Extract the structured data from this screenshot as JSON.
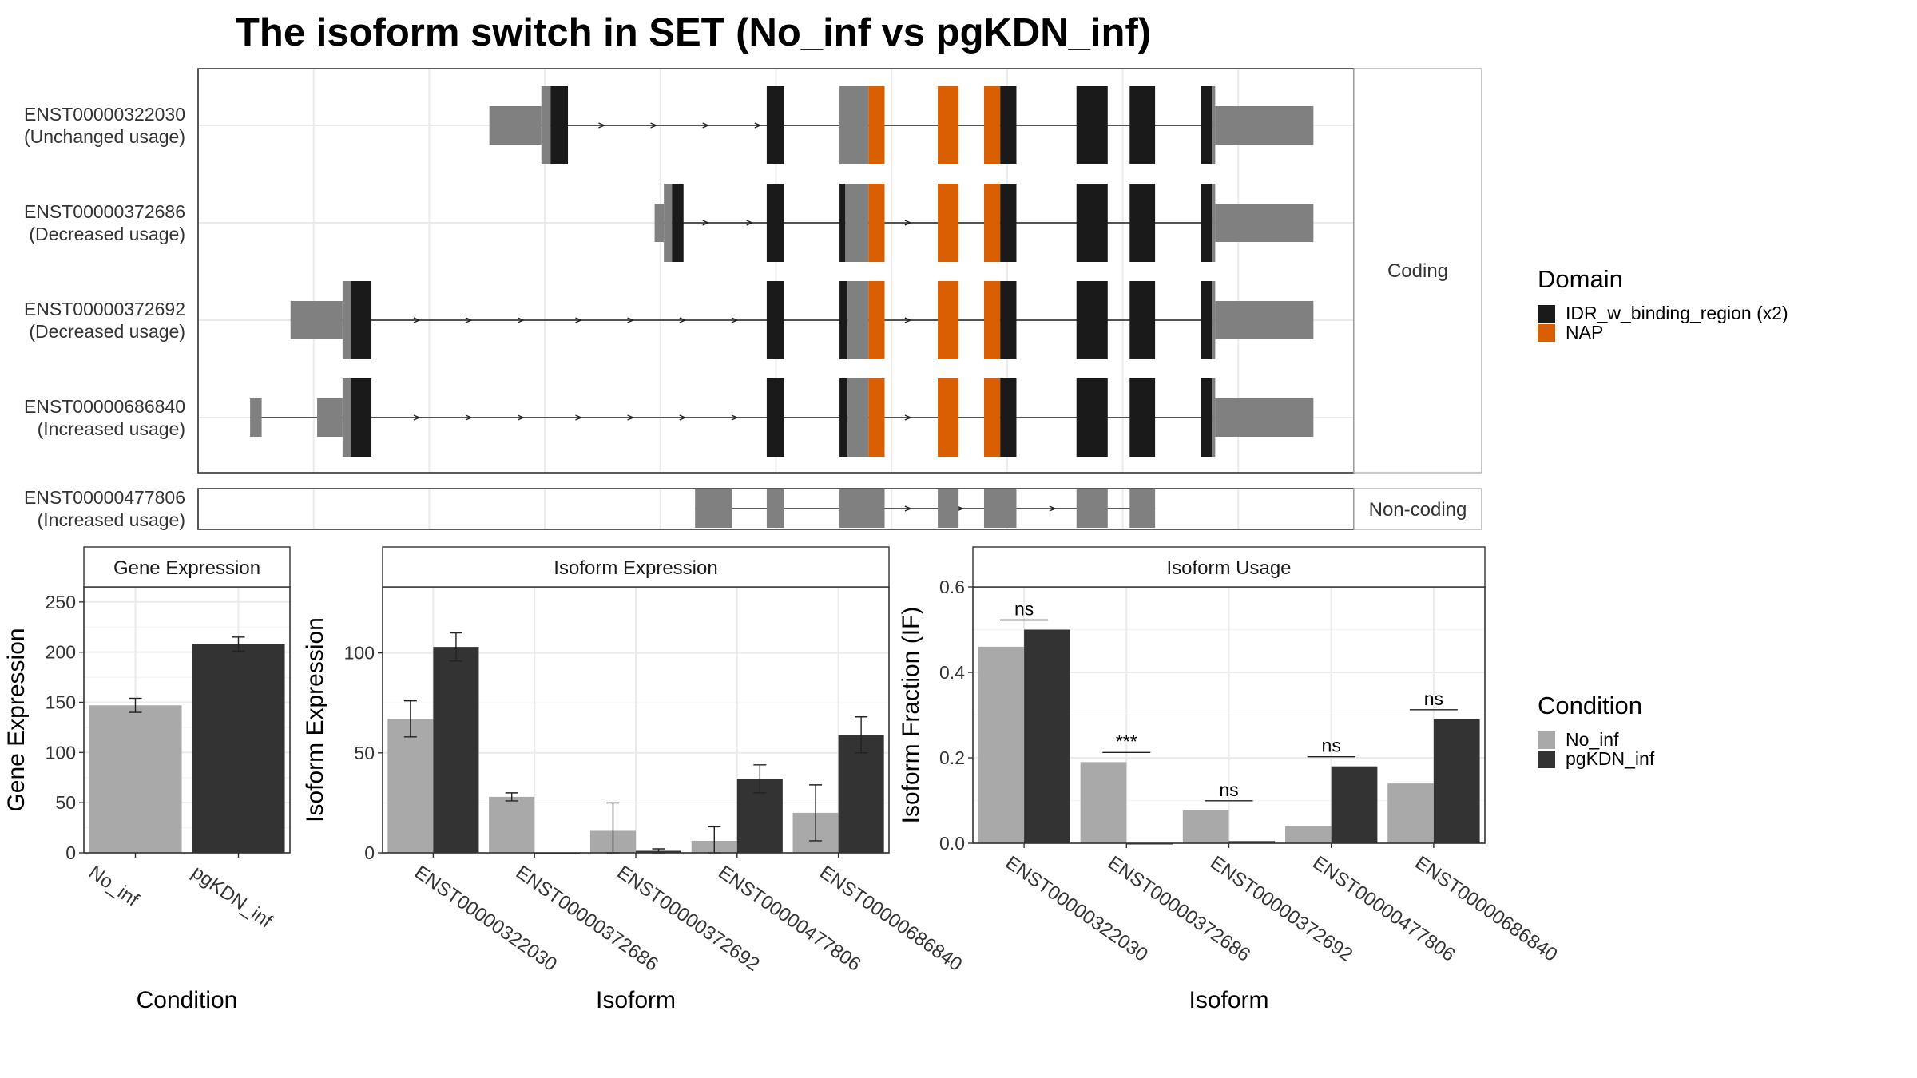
{
  "title": "The isoform switch in SET (No_inf vs pgKDN_inf)",
  "colors": {
    "domain_idr": "#1a1a1a",
    "domain_nap": "#d95f02",
    "utr": "#808080",
    "no_inf": "#a9a9a9",
    "pgkdn_inf": "#333333",
    "grid": "#ebebeb",
    "frame": "#333333"
  },
  "domain_legend": {
    "title": "Domain",
    "items": [
      {
        "label": "IDR_w_binding_region (x2)",
        "color": "#1a1a1a"
      },
      {
        "label": "NAP",
        "color": "#d95f02"
      }
    ]
  },
  "condition_legend": {
    "title": "Condition",
    "items": [
      {
        "label": "No_inf",
        "color": "#a9a9a9"
      },
      {
        "label": "pgKDN_inf",
        "color": "#333333"
      }
    ]
  },
  "structure": {
    "coding_strip": "Coding",
    "noncoding_strip": "Non-coding",
    "xlim": [
      0,
      1000
    ],
    "gridlines": [
      0,
      100,
      200,
      300,
      400,
      500,
      600,
      700,
      800,
      900,
      1000
    ],
    "transcripts": [
      {
        "id": "ENST00000322030",
        "usage": "(Unchanged usage)",
        "group": "coding",
        "line": [
          260,
          880
        ],
        "arrows": [
          350,
          395,
          440,
          485
        ],
        "exons": [
          {
            "s": 252,
            "e": 297,
            "c": "utr",
            "h": "small"
          },
          {
            "s": 297,
            "e": 305,
            "c": "utr",
            "h": "big"
          },
          {
            "s": 305,
            "e": 320,
            "c": "idr",
            "h": "big"
          },
          {
            "s": 492,
            "e": 507,
            "c": "idr",
            "h": "big"
          },
          {
            "s": 555,
            "e": 580,
            "c": "utr",
            "h": "big"
          },
          {
            "s": 580,
            "e": 594,
            "c": "nap",
            "h": "big"
          },
          {
            "s": 640,
            "e": 658,
            "c": "nap",
            "h": "big"
          },
          {
            "s": 680,
            "e": 694,
            "c": "nap",
            "h": "big"
          },
          {
            "s": 694,
            "e": 708,
            "c": "idr",
            "h": "big"
          },
          {
            "s": 760,
            "e": 787,
            "c": "idr",
            "h": "big"
          },
          {
            "s": 806,
            "e": 828,
            "c": "idr",
            "h": "big"
          },
          {
            "s": 868,
            "e": 877,
            "c": "idr",
            "h": "big"
          },
          {
            "s": 877,
            "e": 880,
            "c": "utr",
            "h": "big"
          },
          {
            "s": 880,
            "e": 965,
            "c": "utr",
            "h": "small"
          }
        ]
      },
      {
        "id": "ENST00000372686",
        "usage": "(Decreased usage)",
        "group": "coding",
        "line": [
          400,
          880
        ],
        "arrows": [
          440,
          478,
          615
        ],
        "exons": [
          {
            "s": 395,
            "e": 403,
            "c": "utr",
            "h": "small"
          },
          {
            "s": 403,
            "e": 410,
            "c": "utr",
            "h": "big"
          },
          {
            "s": 410,
            "e": 420,
            "c": "idr",
            "h": "big"
          },
          {
            "s": 492,
            "e": 507,
            "c": "idr",
            "h": "big"
          },
          {
            "s": 555,
            "e": 560,
            "c": "idr",
            "h": "big"
          },
          {
            "s": 560,
            "e": 580,
            "c": "utr",
            "h": "big"
          },
          {
            "s": 580,
            "e": 594,
            "c": "nap",
            "h": "big"
          },
          {
            "s": 640,
            "e": 658,
            "c": "nap",
            "h": "big"
          },
          {
            "s": 680,
            "e": 694,
            "c": "nap",
            "h": "big"
          },
          {
            "s": 694,
            "e": 708,
            "c": "idr",
            "h": "big"
          },
          {
            "s": 760,
            "e": 787,
            "c": "idr",
            "h": "big"
          },
          {
            "s": 806,
            "e": 828,
            "c": "idr",
            "h": "big"
          },
          {
            "s": 868,
            "e": 877,
            "c": "idr",
            "h": "big"
          },
          {
            "s": 877,
            "e": 880,
            "c": "utr",
            "h": "big"
          },
          {
            "s": 880,
            "e": 965,
            "c": "utr",
            "h": "small"
          }
        ]
      },
      {
        "id": "ENST00000372692",
        "usage": "(Decreased usage)",
        "group": "coding",
        "line": [
          80,
          880
        ],
        "arrows": [
          190,
          235,
          280,
          330,
          375,
          420,
          465,
          615
        ],
        "exons": [
          {
            "s": 80,
            "e": 125,
            "c": "utr",
            "h": "small"
          },
          {
            "s": 125,
            "e": 132,
            "c": "utr",
            "h": "big"
          },
          {
            "s": 132,
            "e": 150,
            "c": "idr",
            "h": "big"
          },
          {
            "s": 492,
            "e": 507,
            "c": "idr",
            "h": "big"
          },
          {
            "s": 555,
            "e": 562,
            "c": "idr",
            "h": "big"
          },
          {
            "s": 562,
            "e": 580,
            "c": "utr",
            "h": "big"
          },
          {
            "s": 580,
            "e": 594,
            "c": "nap",
            "h": "big"
          },
          {
            "s": 640,
            "e": 658,
            "c": "nap",
            "h": "big"
          },
          {
            "s": 680,
            "e": 694,
            "c": "nap",
            "h": "big"
          },
          {
            "s": 694,
            "e": 708,
            "c": "idr",
            "h": "big"
          },
          {
            "s": 760,
            "e": 787,
            "c": "idr",
            "h": "big"
          },
          {
            "s": 806,
            "e": 828,
            "c": "idr",
            "h": "big"
          },
          {
            "s": 868,
            "e": 877,
            "c": "idr",
            "h": "big"
          },
          {
            "s": 877,
            "e": 880,
            "c": "utr",
            "h": "big"
          },
          {
            "s": 880,
            "e": 965,
            "c": "utr",
            "h": "small"
          }
        ]
      },
      {
        "id": "ENST00000686840",
        "usage": "(Increased usage)",
        "group": "coding",
        "line": [
          45,
          880
        ],
        "arrows": [
          190,
          235,
          280,
          330,
          375,
          420,
          465,
          615
        ],
        "exons": [
          {
            "s": 45,
            "e": 55,
            "c": "utr",
            "h": "small"
          },
          {
            "s": 103,
            "e": 125,
            "c": "utr",
            "h": "small"
          },
          {
            "s": 125,
            "e": 132,
            "c": "utr",
            "h": "big"
          },
          {
            "s": 132,
            "e": 150,
            "c": "idr",
            "h": "big"
          },
          {
            "s": 492,
            "e": 507,
            "c": "idr",
            "h": "big"
          },
          {
            "s": 555,
            "e": 562,
            "c": "idr",
            "h": "big"
          },
          {
            "s": 562,
            "e": 580,
            "c": "utr",
            "h": "big"
          },
          {
            "s": 580,
            "e": 594,
            "c": "nap",
            "h": "big"
          },
          {
            "s": 640,
            "e": 658,
            "c": "nap",
            "h": "big"
          },
          {
            "s": 680,
            "e": 694,
            "c": "nap",
            "h": "big"
          },
          {
            "s": 694,
            "e": 708,
            "c": "idr",
            "h": "big"
          },
          {
            "s": 760,
            "e": 787,
            "c": "idr",
            "h": "big"
          },
          {
            "s": 806,
            "e": 828,
            "c": "idr",
            "h": "big"
          },
          {
            "s": 868,
            "e": 877,
            "c": "idr",
            "h": "big"
          },
          {
            "s": 877,
            "e": 880,
            "c": "utr",
            "h": "big"
          },
          {
            "s": 880,
            "e": 965,
            "c": "utr",
            "h": "small"
          }
        ]
      },
      {
        "id": "ENST00000477806",
        "usage": "(Increased usage)",
        "group": "noncoding",
        "line": [
          430,
          828
        ],
        "arrows": [
          615,
          660,
          740
        ],
        "exons": [
          {
            "s": 430,
            "e": 462,
            "c": "utr",
            "h": "big"
          },
          {
            "s": 492,
            "e": 507,
            "c": "utr",
            "h": "big"
          },
          {
            "s": 555,
            "e": 594,
            "c": "utr",
            "h": "big"
          },
          {
            "s": 640,
            "e": 658,
            "c": "utr",
            "h": "big"
          },
          {
            "s": 680,
            "e": 708,
            "c": "utr",
            "h": "big"
          },
          {
            "s": 760,
            "e": 787,
            "c": "utr",
            "h": "big"
          },
          {
            "s": 806,
            "e": 828,
            "c": "utr",
            "h": "big"
          }
        ]
      }
    ]
  },
  "chart_data": [
    {
      "type": "bar",
      "title": "Gene Expression",
      "xlabel": "Condition",
      "ylabel": "Gene Expression",
      "ylim": [
        0,
        265
      ],
      "yticks": [
        0,
        50,
        100,
        150,
        200,
        250
      ],
      "categories": [
        "No_inf",
        "pgKDN_inf"
      ],
      "values": [
        147,
        208
      ],
      "errors": [
        7,
        7
      ]
    },
    {
      "type": "bar",
      "title": "Isoform Expression",
      "xlabel": "Isoform",
      "ylabel": "Isoform Expression",
      "ylim": [
        0,
        133
      ],
      "yticks": [
        0,
        50,
        100
      ],
      "categories": [
        "ENST00000322030",
        "ENST00000372686",
        "ENST00000372692",
        "ENST00000477806",
        "ENST00000686840"
      ],
      "series": [
        {
          "name": "No_inf",
          "values": [
            67,
            28,
            11,
            6,
            20
          ],
          "errors": [
            9,
            2,
            14,
            7,
            14
          ]
        },
        {
          "name": "pgKDN_inf",
          "values": [
            103,
            0,
            1,
            37,
            59
          ],
          "errors": [
            7,
            0,
            1,
            7,
            9
          ]
        }
      ]
    },
    {
      "type": "bar",
      "title": "Isoform Usage",
      "xlabel": "Isoform",
      "ylabel": "Isoform Fraction (IF)",
      "ylim": [
        0,
        0.6
      ],
      "yticks": [
        0.0,
        0.2,
        0.4,
        0.6
      ],
      "categories": [
        "ENST00000322030",
        "ENST00000372686",
        "ENST00000372692",
        "ENST00000477806",
        "ENST00000686840"
      ],
      "series": [
        {
          "name": "No_inf",
          "values": [
            0.46,
            0.19,
            0.077,
            0.04,
            0.14
          ]
        },
        {
          "name": "pgKDN_inf",
          "values": [
            0.5,
            0.0,
            0.005,
            0.18,
            0.29
          ]
        }
      ],
      "significance": [
        "ns",
        "***",
        "ns",
        "ns",
        "ns"
      ]
    }
  ]
}
